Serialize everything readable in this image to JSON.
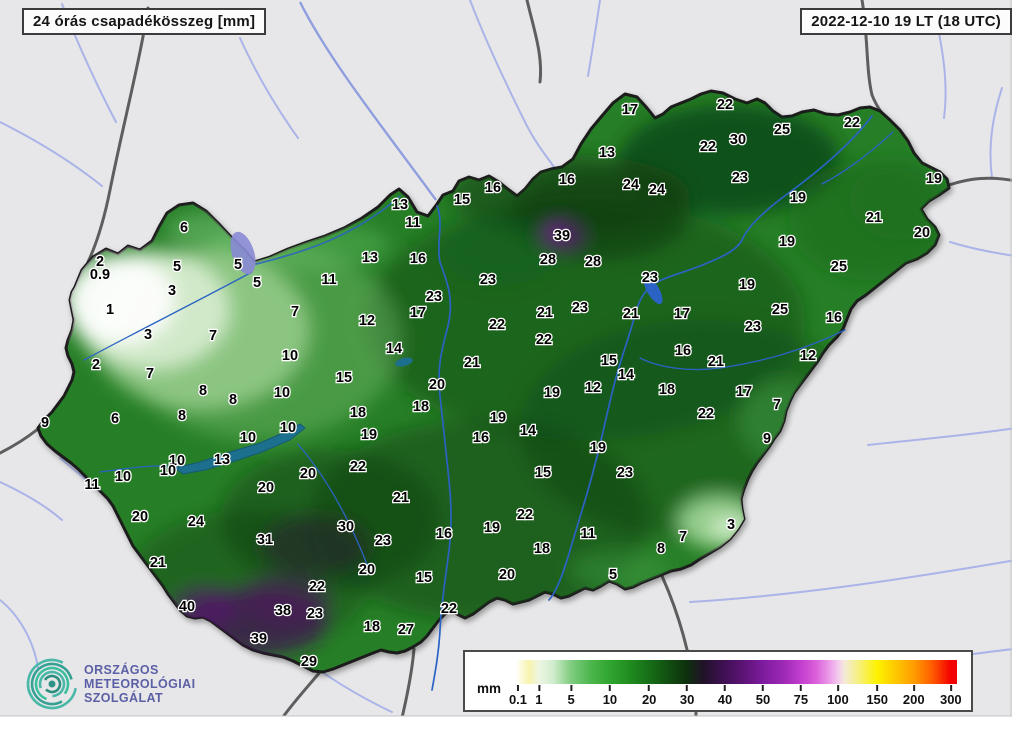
{
  "header": {
    "title_left": "24 órás csapadékösszeg [mm]",
    "title_right": "2022-12-10 19 LT (18 UTC)"
  },
  "legend": {
    "unit": "mm",
    "ticks": [
      "0.1",
      "1",
      "5",
      "10",
      "20",
      "30",
      "40",
      "50",
      "75",
      "100",
      "150",
      "200",
      "300"
    ],
    "tick_percents": [
      0.45,
      5.2,
      12.5,
      21.3,
      30.2,
      38.8,
      47.4,
      56.0,
      64.6,
      73.0,
      81.9,
      90.2,
      98.6
    ],
    "gradient_stops": [
      [
        0,
        "#ffffff"
      ],
      [
        0.45,
        "#fffdf0"
      ],
      [
        3,
        "#f7f3ae"
      ],
      [
        5.2,
        "#eef6e4"
      ],
      [
        8.5,
        "#cfeccc"
      ],
      [
        12.5,
        "#7fcc7f"
      ],
      [
        17,
        "#4cb64c"
      ],
      [
        21.3,
        "#2fa52f"
      ],
      [
        26,
        "#1f8b1f"
      ],
      [
        30.2,
        "#166e16"
      ],
      [
        34.5,
        "#114f11"
      ],
      [
        38.8,
        "#0e300e"
      ],
      [
        42.5,
        "#211229"
      ],
      [
        47.4,
        "#411055"
      ],
      [
        52,
        "#5f1479"
      ],
      [
        56,
        "#7d1b9e"
      ],
      [
        60.5,
        "#9c28b4"
      ],
      [
        64.6,
        "#c23ecf"
      ],
      [
        68,
        "#da5fda"
      ],
      [
        71,
        "#eb9ae8"
      ],
      [
        73,
        "#f3c9ef"
      ],
      [
        74.5,
        "#f5e9d8"
      ],
      [
        76.5,
        "#f4efa0"
      ],
      [
        81.9,
        "#fdf200"
      ],
      [
        86,
        "#fdc800"
      ],
      [
        90.2,
        "#ff9d00"
      ],
      [
        94.5,
        "#ff5a00"
      ],
      [
        98.6,
        "#f40000"
      ],
      [
        100,
        "#ef0000"
      ]
    ]
  },
  "logo": {
    "line1": "ORSZÁGOS",
    "line2": "METEOROLÓGIAI",
    "line3": "SZOLGÁLAT"
  },
  "colors": {
    "map_background": "#e7e7e9",
    "country_base_green": "#267f28",
    "dark_green": "#0e300e",
    "light_green_west": "#eef6e4",
    "purple_max": "#7d1b9e",
    "river_blue": "#2b63c4",
    "outside_river": "#aab4e8",
    "border_gray": "#4f4f4f",
    "logo_teal": "#3bb3a4",
    "logo_text_color": "#5b5fa5"
  },
  "stations": [
    [
      "6",
      184,
      228
    ],
    [
      "2",
      100,
      262
    ],
    [
      "0.9",
      100,
      275
    ],
    [
      "5",
      177,
      267
    ],
    [
      "5",
      238,
      265
    ],
    [
      "5",
      257,
      283
    ],
    [
      "3",
      172,
      291
    ],
    [
      "1",
      110,
      310
    ],
    [
      "3",
      148,
      335
    ],
    [
      "7",
      213,
      336
    ],
    [
      "2",
      96,
      365
    ],
    [
      "7",
      295,
      312
    ],
    [
      "11",
      329,
      280
    ],
    [
      "10",
      290,
      356
    ],
    [
      "7",
      150,
      374
    ],
    [
      "8",
      203,
      391
    ],
    [
      "8",
      233,
      400
    ],
    [
      "8",
      182,
      416
    ],
    [
      "10",
      282,
      393
    ],
    [
      "9",
      45,
      423
    ],
    [
      "6",
      115,
      419
    ],
    [
      "10",
      288,
      428
    ],
    [
      "10",
      248,
      438
    ],
    [
      "13",
      222,
      460
    ],
    [
      "10",
      177,
      461
    ],
    [
      "10",
      168,
      471
    ],
    [
      "10",
      123,
      477
    ],
    [
      "11",
      92,
      485
    ],
    [
      "20",
      140,
      517
    ],
    [
      "24",
      196,
      522
    ],
    [
      "21",
      158,
      563
    ],
    [
      "40",
      187,
      607
    ],
    [
      "38",
      283,
      611
    ],
    [
      "39",
      259,
      639
    ],
    [
      "23",
      315,
      614
    ],
    [
      "22",
      317,
      587
    ],
    [
      "29",
      309,
      662
    ],
    [
      "31",
      265,
      540
    ],
    [
      "20",
      266,
      488
    ],
    [
      "20",
      308,
      474
    ],
    [
      "30",
      346,
      527
    ],
    [
      "23",
      383,
      541
    ],
    [
      "20",
      367,
      570
    ],
    [
      "15",
      424,
      578
    ],
    [
      "18",
      372,
      627
    ],
    [
      "27",
      406,
      630
    ],
    [
      "22",
      449,
      609
    ],
    [
      "13",
      370,
      258
    ],
    [
      "16",
      418,
      259
    ],
    [
      "12",
      367,
      321
    ],
    [
      "14",
      394,
      349
    ],
    [
      "15",
      344,
      378
    ],
    [
      "18",
      358,
      413
    ],
    [
      "19",
      369,
      435
    ],
    [
      "22",
      358,
      467
    ],
    [
      "21",
      401,
      498
    ],
    [
      "17",
      418,
      313
    ],
    [
      "23",
      434,
      297
    ],
    [
      "23",
      488,
      280
    ],
    [
      "13",
      400,
      205
    ],
    [
      "11",
      413,
      223
    ],
    [
      "15",
      462,
      200
    ],
    [
      "16",
      493,
      188
    ],
    [
      "16",
      567,
      180
    ],
    [
      "13",
      607,
      153
    ],
    [
      "17",
      630,
      110
    ],
    [
      "39",
      562,
      236
    ],
    [
      "28",
      548,
      260
    ],
    [
      "28",
      593,
      262
    ],
    [
      "24",
      631,
      185
    ],
    [
      "24",
      657,
      190
    ],
    [
      "22",
      725,
      105
    ],
    [
      "30",
      738,
      140
    ],
    [
      "22",
      708,
      147
    ],
    [
      "25",
      782,
      130
    ],
    [
      "22",
      852,
      123
    ],
    [
      "23",
      740,
      178
    ],
    [
      "19",
      798,
      198
    ],
    [
      "19",
      934,
      179
    ],
    [
      "21",
      874,
      218
    ],
    [
      "20",
      922,
      233
    ],
    [
      "25",
      839,
      267
    ],
    [
      "19",
      787,
      242
    ],
    [
      "23",
      650,
      278
    ],
    [
      "21",
      545,
      313
    ],
    [
      "23",
      580,
      308
    ],
    [
      "22",
      497,
      325
    ],
    [
      "22",
      544,
      340
    ],
    [
      "21",
      472,
      363
    ],
    [
      "20",
      437,
      385
    ],
    [
      "18",
      421,
      407
    ],
    [
      "19",
      498,
      418
    ],
    [
      "16",
      481,
      438
    ],
    [
      "14",
      528,
      431
    ],
    [
      "15",
      609,
      361
    ],
    [
      "14",
      626,
      375
    ],
    [
      "12",
      593,
      388
    ],
    [
      "19",
      552,
      393
    ],
    [
      "18",
      667,
      390
    ],
    [
      "21",
      631,
      314
    ],
    [
      "17",
      682,
      314
    ],
    [
      "16",
      683,
      351
    ],
    [
      "21",
      716,
      362
    ],
    [
      "17",
      744,
      392
    ],
    [
      "22",
      706,
      414
    ],
    [
      "7",
      777,
      405
    ],
    [
      "9",
      767,
      439
    ],
    [
      "19",
      747,
      285
    ],
    [
      "25",
      780,
      310
    ],
    [
      "23",
      753,
      327
    ],
    [
      "12",
      808,
      356
    ],
    [
      "16",
      834,
      318
    ],
    [
      "15",
      543,
      473
    ],
    [
      "23",
      625,
      473
    ],
    [
      "19",
      598,
      448
    ],
    [
      "22",
      525,
      515
    ],
    [
      "19",
      492,
      528
    ],
    [
      "16",
      444,
      534
    ],
    [
      "11",
      588,
      534
    ],
    [
      "18",
      542,
      549
    ],
    [
      "20",
      507,
      575
    ],
    [
      "5",
      613,
      575
    ],
    [
      "3",
      731,
      525
    ],
    [
      "7",
      683,
      537
    ],
    [
      "8",
      661,
      549
    ]
  ]
}
